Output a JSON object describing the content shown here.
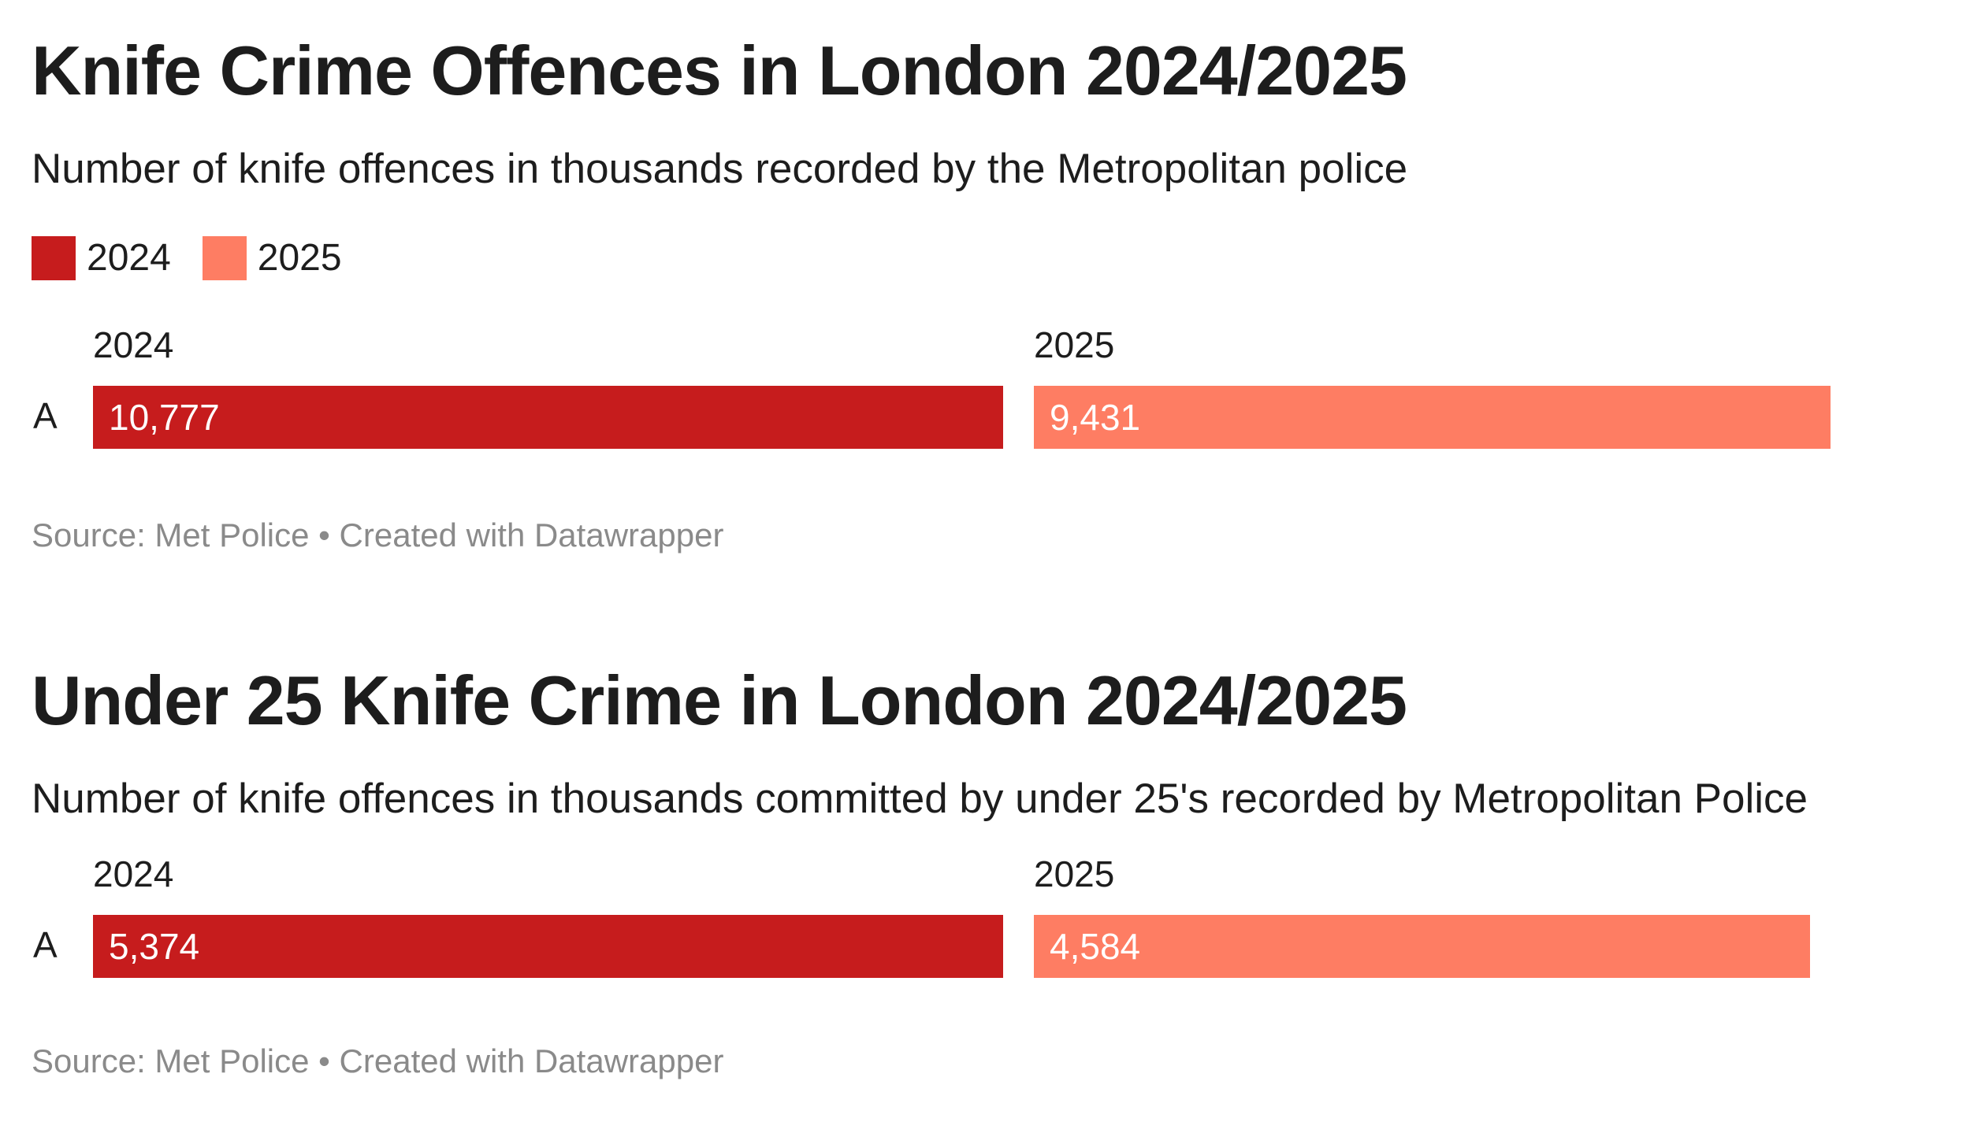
{
  "colors": {
    "y2024": "#c61c1d",
    "y2025": "#fe7d63"
  },
  "legend": {
    "items": [
      {
        "label": "2024",
        "color": "#c61c1d"
      },
      {
        "label": "2025",
        "color": "#fe7d63"
      }
    ]
  },
  "chart_data": [
    {
      "type": "bar",
      "title": "Knife Crime Offences in London 2024/2025",
      "subtitle": "Number of knife offences in thousands recorded by the Metropolitan police",
      "categories": [
        "A"
      ],
      "series": [
        {
          "name": "2024",
          "values": [
            10777
          ],
          "labels": [
            "10,777"
          ]
        },
        {
          "name": "2025",
          "values": [
            9431
          ],
          "labels": [
            "9,431"
          ]
        }
      ],
      "source": "Source: Met Police • Created with Datawrapper",
      "xlabel": "",
      "ylabel": "",
      "legend": "top-left"
    },
    {
      "type": "bar",
      "title": "Under 25 Knife Crime in London 2024/2025",
      "subtitle": "Number of knife offences in thousands committed by under 25's recorded by Metropolitan Police",
      "categories": [
        "A"
      ],
      "series": [
        {
          "name": "2024",
          "values": [
            5374
          ],
          "labels": [
            "5,374"
          ]
        },
        {
          "name": "2025",
          "values": [
            4584
          ],
          "labels": [
            "4,584"
          ]
        }
      ],
      "source": "Source: Met Police • Created with Datawrapper",
      "xlabel": "",
      "ylabel": "",
      "legend": "none"
    }
  ]
}
